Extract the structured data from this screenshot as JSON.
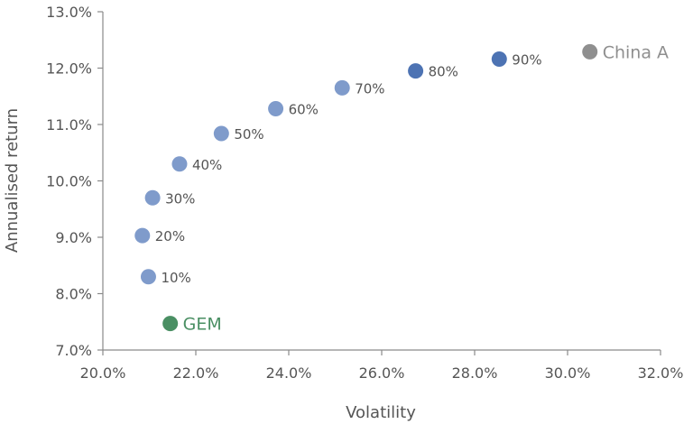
{
  "chart_data": {
    "type": "scatter",
    "title": "",
    "xlabel": "Volatility",
    "ylabel": "Annualised return",
    "xlim": [
      20.0,
      32.0
    ],
    "ylim": [
      7.0,
      13.0
    ],
    "x_ticks": [
      20.0,
      22.0,
      24.0,
      26.0,
      28.0,
      30.0,
      32.0
    ],
    "y_ticks": [
      7.0,
      8.0,
      9.0,
      10.0,
      11.0,
      12.0,
      13.0
    ],
    "x_tick_labels": [
      "20.0%",
      "22.0%",
      "24.0%",
      "26.0%",
      "28.0%",
      "30.0%",
      "32.0%"
    ],
    "y_tick_labels": [
      "7.0%",
      "8.0%",
      "9.0%",
      "10.0%",
      "11.0%",
      "12.0%",
      "13.0%"
    ],
    "grid": false,
    "points": [
      {
        "label": "GEM",
        "x": 21.45,
        "y": 7.47,
        "color": "#4a8f63",
        "label_color": "#4a8f63"
      },
      {
        "label": "10%",
        "x": 20.98,
        "y": 8.3,
        "color": "#7f9bcb",
        "label_color": "#555555"
      },
      {
        "label": "20%",
        "x": 20.85,
        "y": 9.03,
        "color": "#7f9bcb",
        "label_color": "#555555"
      },
      {
        "label": "30%",
        "x": 21.07,
        "y": 9.7,
        "color": "#7f9bcb",
        "label_color": "#555555"
      },
      {
        "label": "40%",
        "x": 21.65,
        "y": 10.3,
        "color": "#7f9bcb",
        "label_color": "#555555"
      },
      {
        "label": "50%",
        "x": 22.55,
        "y": 10.84,
        "color": "#7f9bcb",
        "label_color": "#555555"
      },
      {
        "label": "60%",
        "x": 23.72,
        "y": 11.28,
        "color": "#7f9bcb",
        "label_color": "#555555"
      },
      {
        "label": "70%",
        "x": 25.15,
        "y": 11.65,
        "color": "#7f9bcb",
        "label_color": "#555555"
      },
      {
        "label": "80%",
        "x": 26.73,
        "y": 11.95,
        "color": "#4d73b3",
        "label_color": "#555555"
      },
      {
        "label": "90%",
        "x": 28.53,
        "y": 12.16,
        "color": "#4d73b3",
        "label_color": "#555555"
      },
      {
        "label": "China A",
        "x": 30.48,
        "y": 12.29,
        "color": "#8f8f8f",
        "label_color": "#8f8f8f"
      }
    ]
  }
}
